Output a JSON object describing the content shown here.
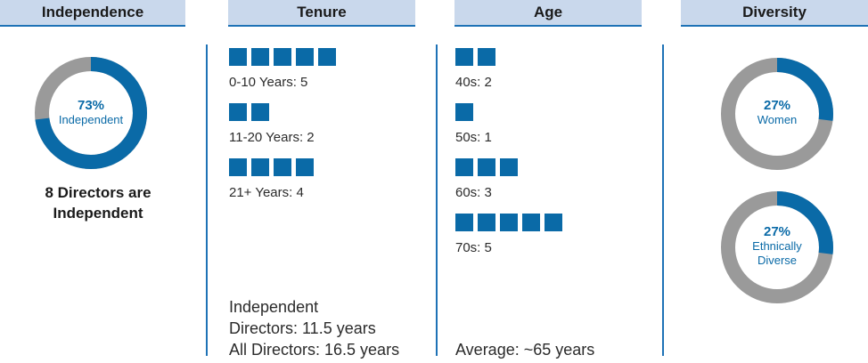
{
  "colors": {
    "accent": "#0a6aa7",
    "ring_gray": "#9a9a9a",
    "header_bg": "#c9d8ec",
    "rule": "#1e72b6"
  },
  "headers": [
    "Independence",
    "Tenure",
    "Age",
    "Diversity"
  ],
  "independence": {
    "pct": "73%",
    "label": "Independent",
    "caption_line1": "8 Directors are",
    "caption_line2": "Independent"
  },
  "tenure": {
    "groups": [
      "0-10 Years: 5",
      "11-20 Years: 2",
      "21+ Years: 4"
    ],
    "summary_line1": "Independent",
    "summary_line2": "Directors: 11.5 years",
    "summary_line3": "All Directors: 16.5 years"
  },
  "age": {
    "groups": [
      "40s: 2",
      "50s: 1",
      "60s: 3",
      "70s: 5"
    ],
    "summary": "Average: ~65 years"
  },
  "diversity": {
    "women": {
      "pct": "27%",
      "label": "Women"
    },
    "ethnic": {
      "pct": "27%",
      "label_line1": "Ethnically",
      "label_line2": "Diverse"
    }
  },
  "chart_data": [
    {
      "type": "pie",
      "categories": [
        "Independent",
        "Other"
      ],
      "values": [
        73,
        27
      ],
      "title": "Independence"
    },
    {
      "type": "bar",
      "categories": [
        "0-10 Years",
        "11-20 Years",
        "21+ Years"
      ],
      "values": [
        5,
        2,
        4
      ],
      "title": "Tenure"
    },
    {
      "type": "bar",
      "categories": [
        "40s",
        "50s",
        "60s",
        "70s"
      ],
      "values": [
        2,
        1,
        3,
        5
      ],
      "title": "Age"
    },
    {
      "type": "pie",
      "categories": [
        "Women",
        "Other"
      ],
      "values": [
        27,
        73
      ],
      "title": "Diversity"
    },
    {
      "type": "pie",
      "categories": [
        "Ethnically Diverse",
        "Other"
      ],
      "values": [
        27,
        73
      ],
      "title": "Diversity"
    }
  ]
}
